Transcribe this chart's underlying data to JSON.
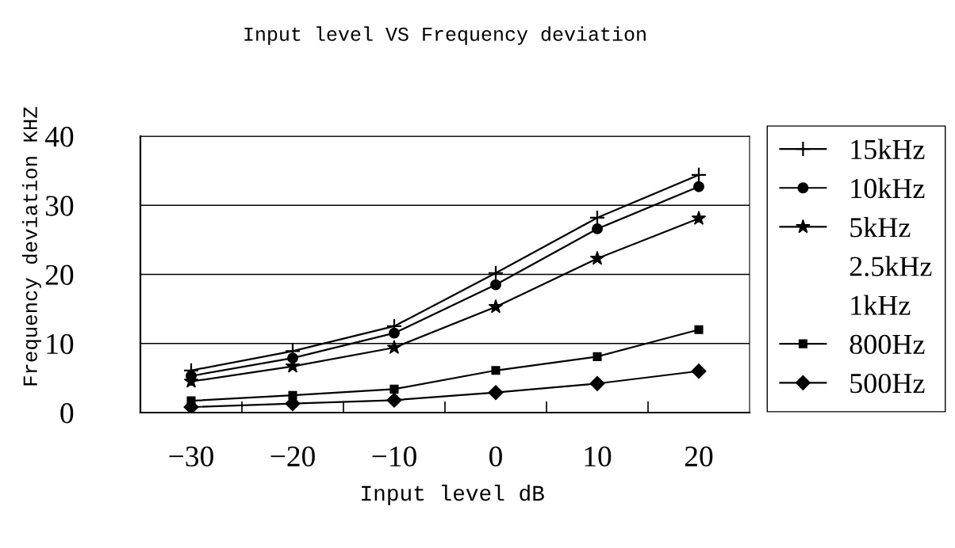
{
  "chart_data": {
    "type": "line",
    "title": "Input level VS Frequency deviation",
    "xlabel": "Input level dB",
    "ylabel": "Frequency deviation KHZ",
    "categories": [
      "−30",
      "−20",
      "−10",
      "0",
      "10",
      "20"
    ],
    "ylim": [
      0,
      40
    ],
    "yticks": [
      0,
      10,
      20,
      30,
      40
    ],
    "grid": "y",
    "legend": "right",
    "line_style": "solid",
    "series": [
      {
        "name": "15kHz",
        "color": "#000000",
        "marker": "cross",
        "values": [
          6.1,
          8.9,
          12.5,
          20.2,
          28.2,
          34.4
        ]
      },
      {
        "name": "10kHz",
        "color": "#000000",
        "marker": "circle",
        "values": [
          5.3,
          7.9,
          11.5,
          18.5,
          26.6,
          32.7
        ]
      },
      {
        "name": "5kHz",
        "color": "#000000",
        "marker": "star",
        "values": [
          4.5,
          6.7,
          9.4,
          15.3,
          22.3,
          28.1
        ]
      },
      {
        "name": "2.5kHz",
        "values": [
          null,
          null,
          null,
          null,
          null,
          null
        ]
      },
      {
        "name": "1kHz",
        "values": [
          null,
          null,
          null,
          null,
          null,
          null
        ]
      },
      {
        "name": "800Hz",
        "color": "#000000",
        "marker": "square",
        "values": [
          1.7,
          2.5,
          3.4,
          6.1,
          8.1,
          12.0
        ]
      },
      {
        "name": "500Hz",
        "color": "#000000",
        "marker": "diamond",
        "values": [
          0.8,
          1.3,
          1.8,
          2.9,
          4.2,
          6.0
        ]
      }
    ]
  }
}
